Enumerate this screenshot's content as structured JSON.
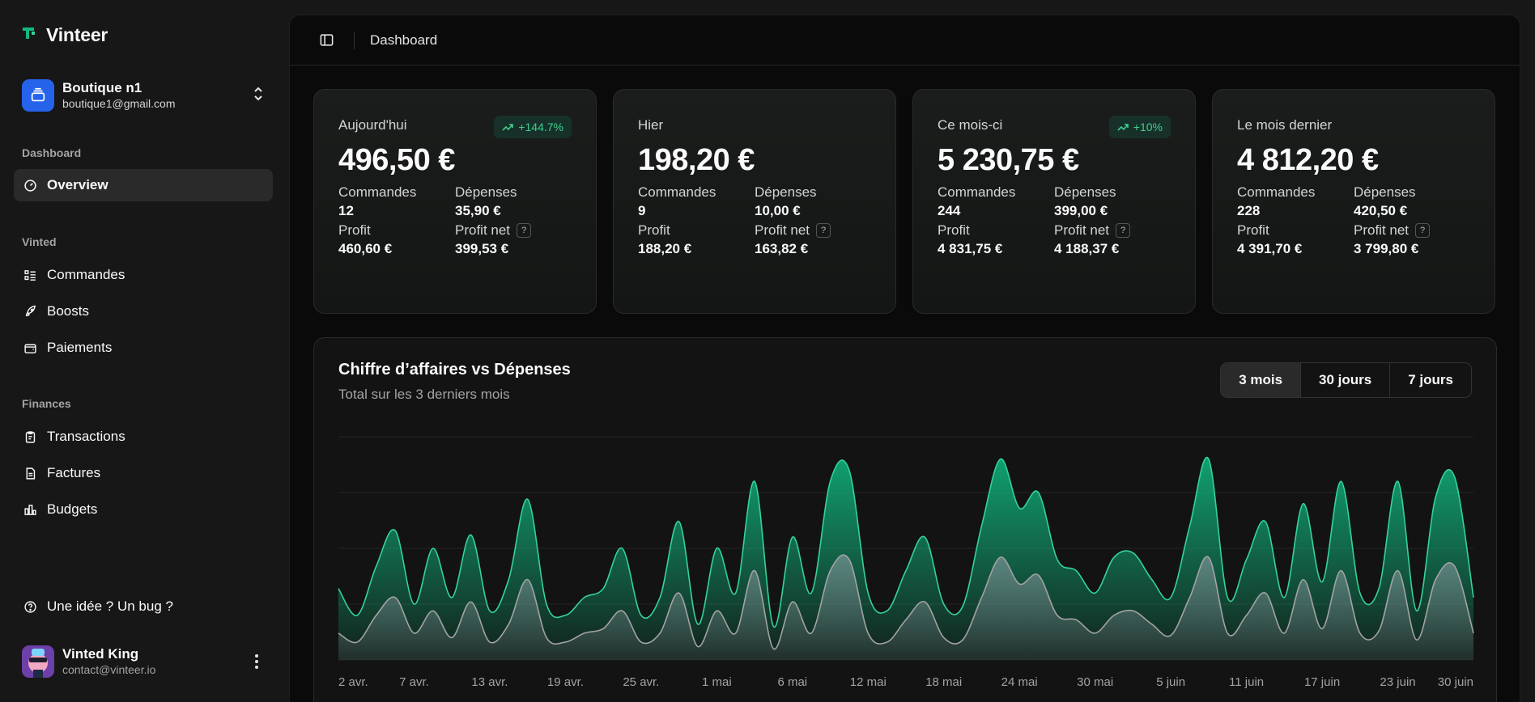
{
  "brand": {
    "name": "Vinteer"
  },
  "account": {
    "name": "Boutique n1",
    "email": "boutique1@gmail.com"
  },
  "sidebar": {
    "sections": [
      {
        "label": "Dashboard",
        "items": [
          {
            "label": "Overview",
            "icon": "gauge-icon",
            "active": true
          }
        ]
      },
      {
        "label": "Vinted",
        "items": [
          {
            "label": "Commandes",
            "icon": "list-icon"
          },
          {
            "label": "Boosts",
            "icon": "rocket-icon"
          },
          {
            "label": "Paiements",
            "icon": "wallet-icon"
          }
        ]
      },
      {
        "label": "Finances",
        "items": [
          {
            "label": "Transactions",
            "icon": "clipboard-icon"
          },
          {
            "label": "Factures",
            "icon": "file-icon"
          },
          {
            "label": "Budgets",
            "icon": "bar-chart-icon"
          }
        ]
      }
    ],
    "feedback": "Une idée ? Un bug ?"
  },
  "user": {
    "name": "Vinted King",
    "email": "contact@vinteer.io"
  },
  "topbar": {
    "title": "Dashboard"
  },
  "cards": [
    {
      "label": "Aujourd'hui",
      "badge": "+144.7%",
      "value": "496,50 €",
      "orders_label": "Commandes",
      "orders": "12",
      "expenses_label": "Dépenses",
      "expenses": "35,90 €",
      "profit_label": "Profit",
      "profit": "460,60 €",
      "net_label": "Profit net",
      "net": "399,53 €"
    },
    {
      "label": "Hier",
      "badge": "",
      "value": "198,20 €",
      "orders_label": "Commandes",
      "orders": "9",
      "expenses_label": "Dépenses",
      "expenses": "10,00 €",
      "profit_label": "Profit",
      "profit": "188,20 €",
      "net_label": "Profit net",
      "net": "163,82 €"
    },
    {
      "label": "Ce mois-ci",
      "badge": "+10%",
      "value": "5 230,75 €",
      "orders_label": "Commandes",
      "orders": "244",
      "expenses_label": "Dépenses",
      "expenses": "399,00 €",
      "profit_label": "Profit",
      "profit": "4 831,75 €",
      "net_label": "Profit net",
      "net": "4 188,37 €"
    },
    {
      "label": "Le mois dernier",
      "badge": "",
      "value": "4 812,20 €",
      "orders_label": "Commandes",
      "orders": "228",
      "expenses_label": "Dépenses",
      "expenses": "420,50 €",
      "profit_label": "Profit",
      "profit": "4 391,70 €",
      "net_label": "Profit net",
      "net": "3 799,80 €"
    }
  ],
  "chart": {
    "title": "Chiffre d’affaires vs Dépenses",
    "subtitle": "Total sur les 3 derniers mois",
    "ranges": [
      "3 mois",
      "30 jours",
      "7 jours"
    ],
    "active_range": "3 mois"
  },
  "chart_data": {
    "type": "area",
    "title": "Chiffre d’affaires vs Dépenses",
    "x_ticks": [
      "2 avr.",
      "7 avr.",
      "13 avr.",
      "19 avr.",
      "25 avr.",
      "1 mai",
      "6 mai",
      "12 mai",
      "18 mai",
      "24 mai",
      "30 mai",
      "5 juin",
      "11 juin",
      "17 juin",
      "23 juin",
      "30 juin"
    ],
    "ylim": [
      0,
      100
    ],
    "grid": true,
    "colors": {
      "revenue": "#10b981",
      "expenses": "#9ca3af"
    },
    "series": [
      {
        "values": [
          32,
          20,
          42,
          58,
          25,
          50,
          28,
          56,
          22,
          36,
          72,
          25,
          20,
          28,
          32,
          50,
          20,
          28,
          62,
          16,
          50,
          30,
          80,
          15,
          55,
          30,
          80,
          85,
          30,
          22,
          40,
          55,
          25,
          24,
          60,
          90,
          68,
          75,
          45,
          40,
          30,
          46,
          48,
          36,
          28,
          60,
          90,
          28,
          45,
          62,
          28,
          70,
          35,
          80,
          30,
          32,
          80,
          22,
          73,
          82,
          28
        ]
      },
      {
        "values": [
          12,
          8,
          20,
          28,
          12,
          22,
          10,
          26,
          8,
          16,
          36,
          10,
          8,
          12,
          14,
          22,
          8,
          12,
          30,
          6,
          22,
          12,
          40,
          5,
          26,
          12,
          40,
          45,
          12,
          8,
          18,
          26,
          10,
          9,
          28,
          46,
          34,
          38,
          20,
          18,
          12,
          20,
          22,
          16,
          11,
          28,
          46,
          12,
          20,
          30,
          12,
          36,
          14,
          40,
          12,
          13,
          40,
          9,
          36,
          42,
          12
        ]
      }
    ]
  }
}
